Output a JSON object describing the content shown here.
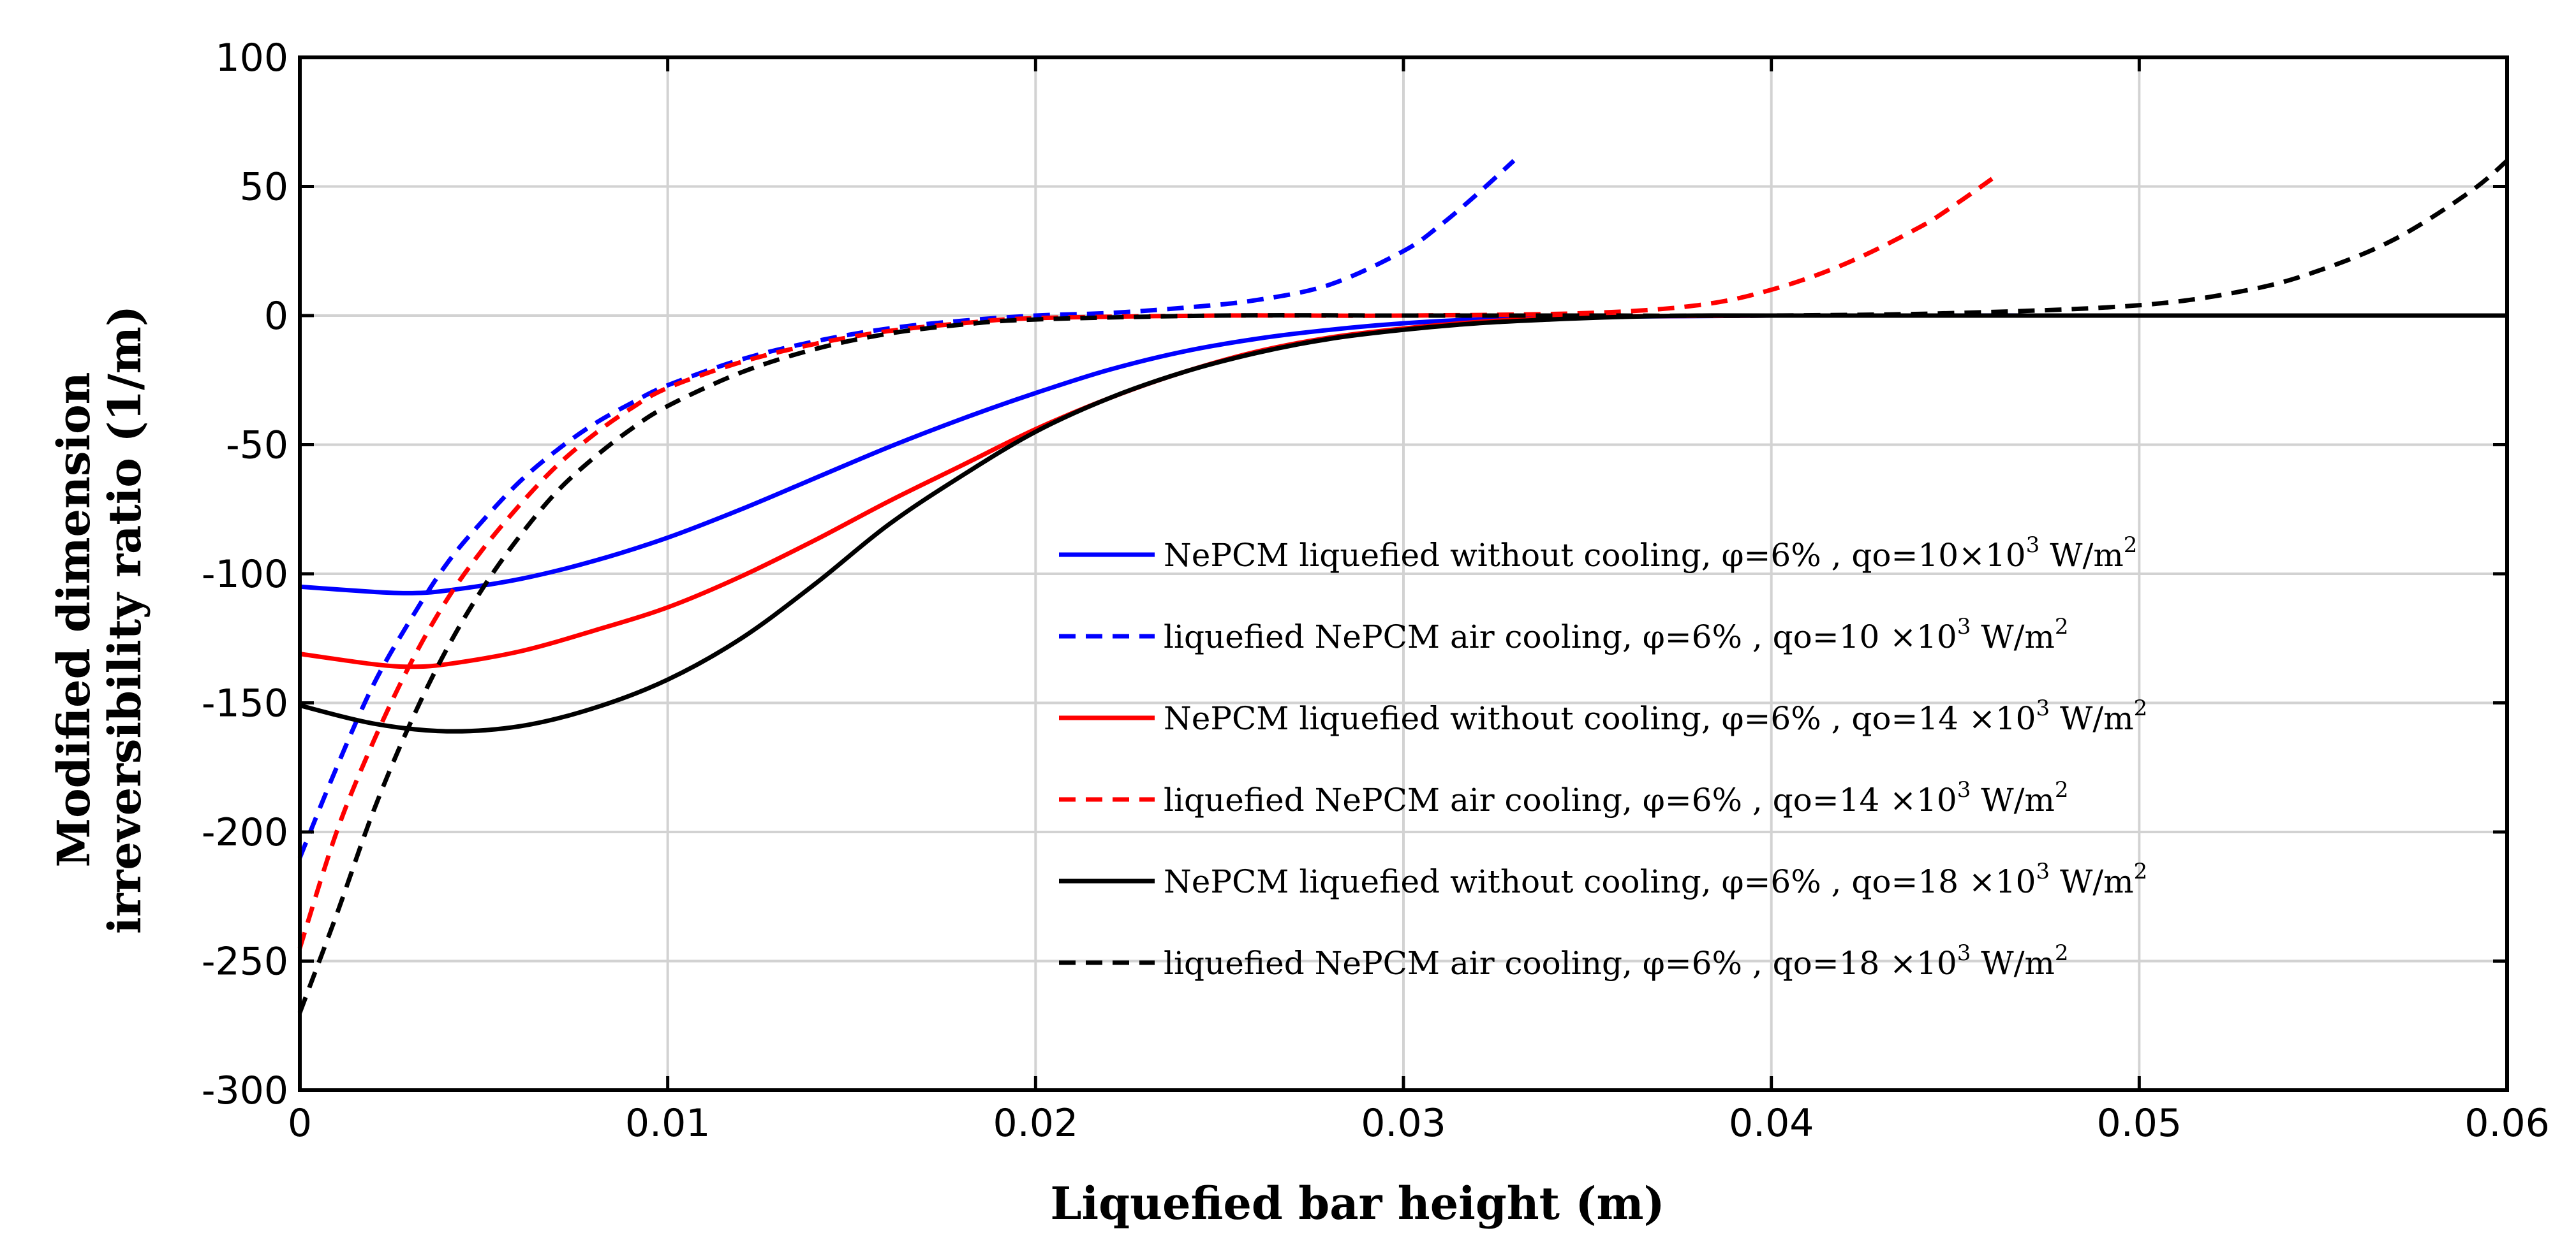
{
  "chart_data": {
    "type": "line",
    "xlabel": "Liquefied bar height (m)",
    "ylabel_line1": "Modified dimension",
    "ylabel_line2": "irreversibility ratio  (1/m)",
    "xlim": [
      0,
      0.06
    ],
    "ylim": [
      -300,
      100
    ],
    "xticks": [
      0,
      0.01,
      0.02,
      0.03,
      0.04,
      0.05,
      0.06
    ],
    "xtick_labels": [
      "0",
      "0.01",
      "0.02",
      "0.03",
      "0.04",
      "0.05",
      "0.06"
    ],
    "yticks": [
      -300,
      -250,
      -200,
      -150,
      -100,
      -50,
      0,
      50,
      100
    ],
    "ytick_labels": [
      "-300",
      "-250",
      "-200",
      "-150",
      "-100",
      "-50",
      "0",
      "50",
      "100"
    ],
    "grid": true,
    "legend_position": "center-right",
    "series": [
      {
        "name": "NePCM liquefied without cooling, φ=6% , qo=10×10³ W/m²",
        "legend_prefix": "NePCM liquefied without cooling, φ=6% , qo=10×10",
        "legend_exp": "3",
        "legend_unit": " W/m",
        "legend_unit_exp": "2",
        "color": "#0000ff",
        "dash": "solid",
        "x": [
          0,
          0.002,
          0.003,
          0.004,
          0.006,
          0.008,
          0.01,
          0.012,
          0.014,
          0.016,
          0.018,
          0.02,
          0.022,
          0.024,
          0.026,
          0.028,
          0.03,
          0.032,
          0.035,
          0.04,
          0.05,
          0.06
        ],
        "y": [
          -105,
          -107,
          -107.5,
          -106.5,
          -102,
          -95,
          -86,
          -75,
          -63,
          -51,
          -40,
          -30,
          -21,
          -14,
          -9,
          -5.5,
          -3,
          -1.5,
          -0.5,
          0,
          0,
          0
        ]
      },
      {
        "name": "liquefied NePCM air cooling, φ=6% , qo=10 ×10³ W/m²",
        "legend_prefix": "liquefied NePCM air cooling, φ=6% , qo=10 ×10",
        "legend_exp": "3",
        "legend_unit": " W/m",
        "legend_unit_exp": "2",
        "color": "#0000ff",
        "dash": "dashed",
        "x": [
          0,
          0.001,
          0.002,
          0.003,
          0.004,
          0.005,
          0.006,
          0.007,
          0.008,
          0.009,
          0.01,
          0.012,
          0.014,
          0.016,
          0.018,
          0.02,
          0.022,
          0.024,
          0.026,
          0.028,
          0.03,
          0.031,
          0.032,
          0.033
        ],
        "y": [
          -210,
          -175,
          -143,
          -118,
          -96,
          -79,
          -64,
          -52,
          -42,
          -34,
          -27,
          -17,
          -10,
          -5,
          -2,
          0,
          1,
          3,
          6,
          12,
          25,
          35,
          47,
          60
        ]
      },
      {
        "name": "NePCM liquefied without cooling, φ=6% , qo=14 ×10³ W/m²",
        "legend_prefix": "NePCM liquefied without cooling, φ=6% , qo=14 ×10",
        "legend_exp": "3",
        "legend_unit": " W/m",
        "legend_unit_exp": "2",
        "color": "#ff0000",
        "dash": "solid",
        "x": [
          0,
          0.002,
          0.003,
          0.004,
          0.006,
          0.008,
          0.01,
          0.012,
          0.014,
          0.016,
          0.018,
          0.02,
          0.022,
          0.024,
          0.026,
          0.028,
          0.03,
          0.032,
          0.034,
          0.036,
          0.04,
          0.05,
          0.06
        ],
        "y": [
          -131,
          -135,
          -136,
          -135,
          -130,
          -122,
          -113,
          -101,
          -87,
          -72,
          -58,
          -44,
          -32,
          -22,
          -14,
          -8.5,
          -5,
          -2.5,
          -1,
          -0.3,
          0,
          0,
          0
        ]
      },
      {
        "name": "liquefied NePCM air cooling, φ=6% , qo=14 ×10³ W/m²",
        "legend_prefix": "liquefied NePCM air cooling, φ=6% , qo=14 ×10",
        "legend_exp": "3",
        "legend_unit": " W/m",
        "legend_unit_exp": "2",
        "color": "#ff0000",
        "dash": "dashed",
        "x": [
          0,
          0.001,
          0.002,
          0.003,
          0.004,
          0.005,
          0.006,
          0.007,
          0.008,
          0.009,
          0.01,
          0.012,
          0.014,
          0.016,
          0.018,
          0.02,
          0.025,
          0.03,
          0.035,
          0.038,
          0.04,
          0.042,
          0.044,
          0.045,
          0.046
        ],
        "y": [
          -245,
          -200,
          -165,
          -135,
          -110,
          -90,
          -73,
          -58,
          -46,
          -36,
          -28,
          -18,
          -11,
          -6,
          -3,
          -1,
          0,
          0,
          1,
          4,
          10,
          20,
          34,
          43,
          53
        ]
      },
      {
        "name": "NePCM liquefied without cooling, φ=6% , qo=18 ×10³ W/m²",
        "legend_prefix": "NePCM liquefied without cooling, φ=6% , qo=18 ×10",
        "legend_exp": "3",
        "legend_unit": " W/m",
        "legend_unit_exp": "2",
        "color": "#000000",
        "dash": "solid",
        "x": [
          0,
          0.002,
          0.004,
          0.006,
          0.008,
          0.01,
          0.012,
          0.014,
          0.016,
          0.018,
          0.02,
          0.022,
          0.024,
          0.026,
          0.028,
          0.03,
          0.032,
          0.034,
          0.036,
          0.038,
          0.04,
          0.05,
          0.06
        ],
        "y": [
          -151,
          -158,
          -161,
          -159,
          -152,
          -141,
          -125,
          -104,
          -81,
          -62,
          -45,
          -32,
          -22,
          -14.5,
          -9,
          -5.5,
          -3,
          -1.5,
          -0.5,
          0,
          0,
          0,
          0
        ]
      },
      {
        "name": "liquefied NePCM air cooling, φ=6% , qo=18 ×10³ W/m²",
        "legend_prefix": "liquefied NePCM air cooling, φ=6% , qo=18 ×10",
        "legend_exp": "3",
        "legend_unit": " W/m",
        "legend_unit_exp": "2",
        "color": "#000000",
        "dash": "dashed",
        "x": [
          0,
          0.001,
          0.002,
          0.003,
          0.004,
          0.005,
          0.006,
          0.007,
          0.008,
          0.009,
          0.01,
          0.012,
          0.014,
          0.016,
          0.018,
          0.02,
          0.025,
          0.03,
          0.035,
          0.04,
          0.045,
          0.05,
          0.053,
          0.055,
          0.057,
          0.059,
          0.06
        ],
        "y": [
          -270,
          -232,
          -192,
          -158,
          -129,
          -105,
          -85,
          -68,
          -55,
          -44,
          -35,
          -22,
          -13,
          -7,
          -3.5,
          -1.5,
          0,
          0,
          0,
          0,
          1,
          4,
          10,
          18,
          30,
          48,
          60
        ]
      }
    ]
  }
}
